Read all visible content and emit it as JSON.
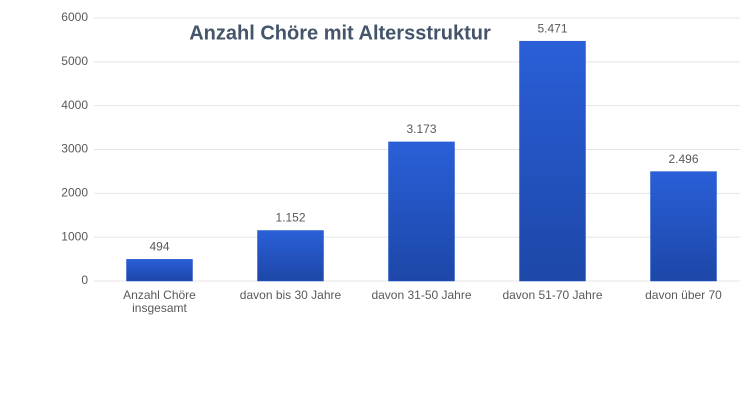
{
  "chart_data": {
    "type": "bar",
    "title": "Anzahl Chöre mit Altersstruktur",
    "categories": [
      "Anzahl Chöre insgesamt",
      "davon bis 30 Jahre",
      "davon 31-50 Jahre",
      "davon 51-70 Jahre",
      "davon über 70"
    ],
    "values": [
      494,
      1152,
      3173,
      5471,
      2496
    ],
    "value_labels": [
      "494",
      "1.152",
      "3.173",
      "5.471",
      "2.496"
    ],
    "color": "#2356c8",
    "ylim": [
      0,
      6000
    ],
    "yticks": [
      0,
      1000,
      2000,
      3000,
      4000,
      5000,
      6000
    ],
    "grid": true
  }
}
